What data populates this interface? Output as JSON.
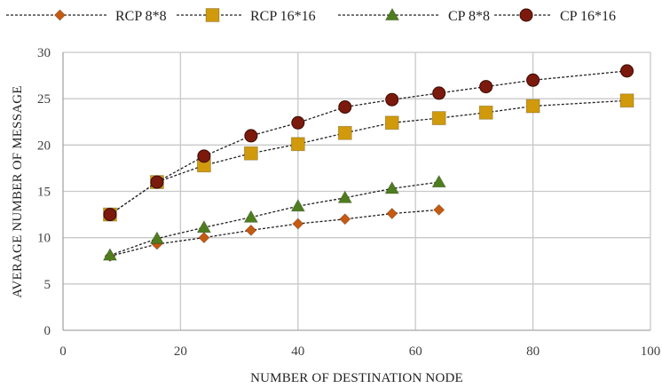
{
  "chart_data": {
    "type": "line",
    "xlabel": "NUMBER OF DESTINATION NODE",
    "ylabel": "AVERAGE NUMBER OF MESSAGE",
    "xlim": [
      0,
      100
    ],
    "ylim": [
      0,
      30
    ],
    "xticks": [
      0,
      20,
      40,
      60,
      80,
      100
    ],
    "yticks": [
      0,
      5,
      10,
      15,
      20,
      25,
      30
    ],
    "grid": true,
    "legend_position": "top",
    "series": [
      {
        "name": "RCP 8*8",
        "marker": "diamond",
        "color": "#c55a11",
        "x": [
          8,
          16,
          24,
          32,
          40,
          48,
          56,
          64
        ],
        "values": [
          8,
          9.3,
          10,
          10.8,
          11.5,
          12,
          12.6,
          13
        ]
      },
      {
        "name": "RCP 16*16",
        "marker": "square",
        "color": "#d09a0c",
        "x": [
          8,
          16,
          24,
          32,
          40,
          48,
          56,
          64,
          72,
          80,
          96
        ],
        "values": [
          12.5,
          16,
          17.8,
          19.1,
          20.1,
          21.3,
          22.4,
          22.9,
          23.5,
          24.2,
          24.8
        ]
      },
      {
        "name": "CP 8*8",
        "marker": "triangle",
        "color": "#4e7d1e",
        "x": [
          8,
          16,
          24,
          32,
          40,
          48,
          56,
          64
        ],
        "values": [
          8.1,
          9.9,
          11.1,
          12.2,
          13.4,
          14.3,
          15.3,
          16
        ]
      },
      {
        "name": "CP 16*16",
        "marker": "circle",
        "color": "#7b1a0c",
        "x": [
          8,
          16,
          24,
          32,
          40,
          48,
          56,
          64,
          72,
          80,
          96
        ],
        "values": [
          12.5,
          16,
          18.8,
          21,
          22.4,
          24.1,
          24.9,
          25.6,
          26.3,
          27,
          28
        ]
      }
    ]
  }
}
